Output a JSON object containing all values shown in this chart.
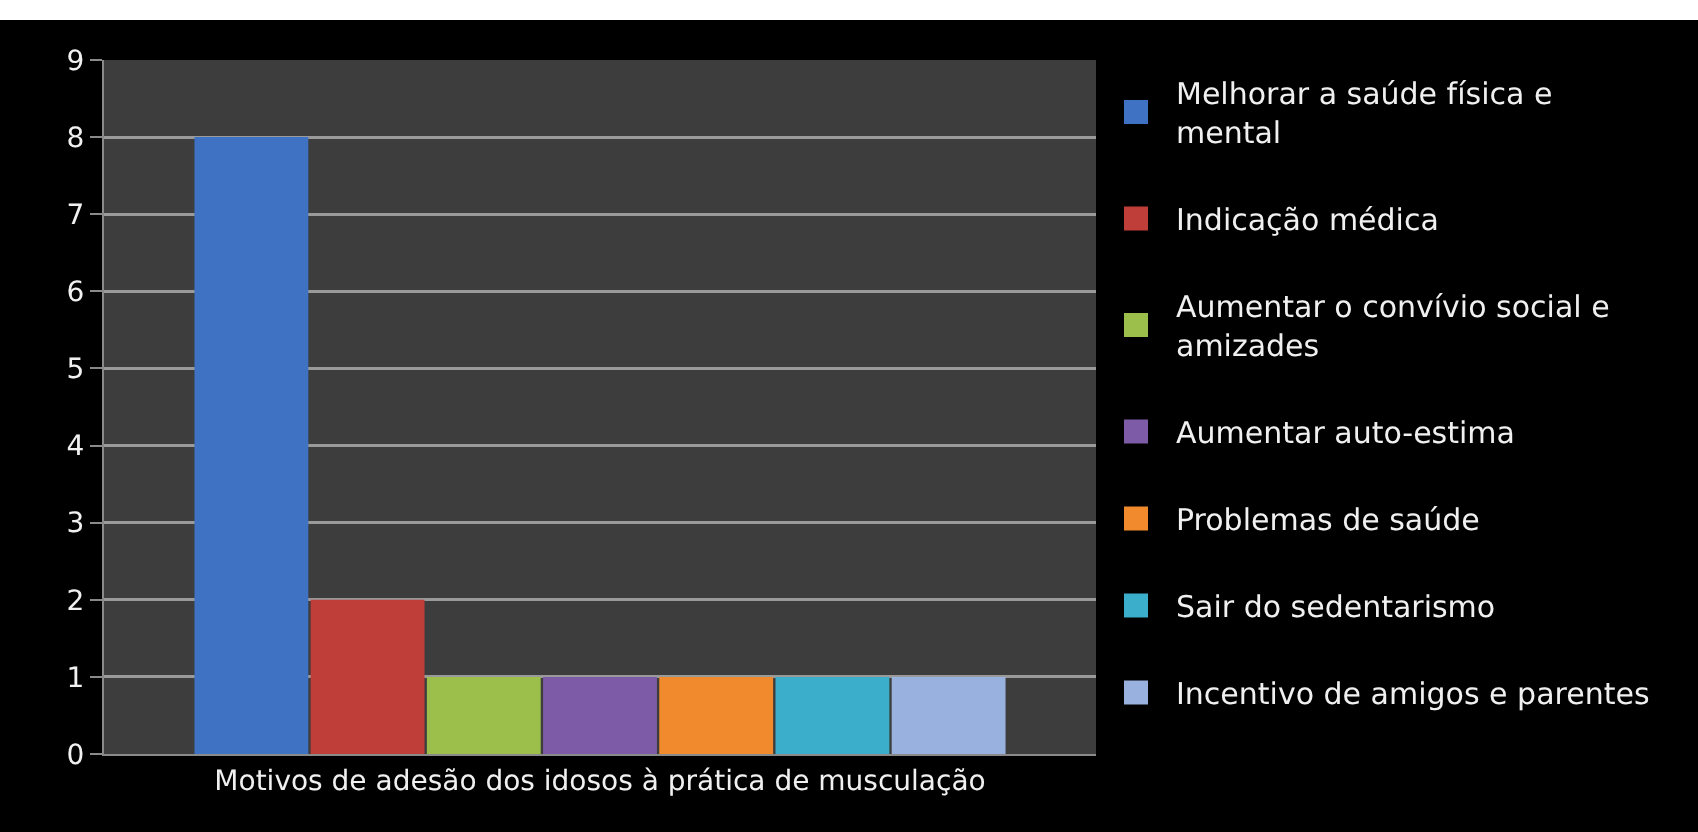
{
  "chart_data": {
    "type": "bar",
    "categories": [
      "Motivos de adesão dos idosos à prática de musculação"
    ],
    "series": [
      {
        "name": "Melhorar a saúde física e mental",
        "color": "#3f72c2",
        "values": [
          8
        ]
      },
      {
        "name": "Indicação médica",
        "color": "#c03e3a",
        "values": [
          2
        ]
      },
      {
        "name": "Aumentar o convívio social e amizades",
        "color": "#9bbf4a",
        "values": [
          1
        ]
      },
      {
        "name": "Aumentar auto-estima",
        "color": "#7d5ba6",
        "values": [
          1
        ]
      },
      {
        "name": "Problemas de saúde",
        "color": "#f08a2c",
        "values": [
          1
        ]
      },
      {
        "name": "Sair do sedentarismo",
        "color": "#3aaecb",
        "values": [
          1
        ]
      },
      {
        "name": "Incentivo de amigos e parentes",
        "color": "#98b1de",
        "values": [
          1
        ]
      }
    ],
    "ylim": [
      0,
      9
    ],
    "yticks": [
      0,
      1,
      2,
      3,
      4,
      5,
      6,
      7,
      8,
      9
    ],
    "grid": "y",
    "legend": "right"
  }
}
